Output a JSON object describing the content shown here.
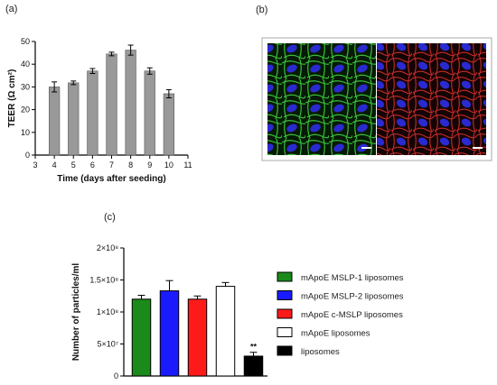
{
  "panels": {
    "a": "(a)",
    "b": "(b)",
    "c": "(c)"
  },
  "chart_data": [
    {
      "type": "bar",
      "panel": "(a)",
      "x": [
        4,
        5,
        6,
        7,
        8,
        9,
        10
      ],
      "values": [
        30,
        31.8,
        37,
        44.5,
        46.2,
        37,
        27
      ],
      "errors": [
        2.2,
        0.8,
        1.1,
        0.8,
        2.2,
        1.4,
        1.8
      ],
      "xlim": [
        3,
        11
      ],
      "xticks": [
        3,
        4,
        5,
        6,
        7,
        8,
        9,
        10,
        11
      ],
      "ylim": [
        0,
        50
      ],
      "yticks": [
        0,
        10,
        20,
        30,
        40,
        50
      ],
      "xlabel": "Time (days after seeding)",
      "ylabel": "TEER (Ω cm²)",
      "bar_color": "#999999"
    },
    {
      "type": "bar",
      "panel": "(c)",
      "categories": [
        "mApoE MSLP-1 liposomes",
        "mApoE MSLP-2 liposomes",
        "mApoE c-MSLP liposomes",
        "mApoE liposomes",
        "liposomes"
      ],
      "values": [
        120000000,
        133000000,
        120000000,
        140000000,
        31000000
      ],
      "errors": [
        6000000,
        16000000,
        5000000,
        6000000,
        6000000
      ],
      "colors": [
        "#1a8a1a",
        "#1a1aff",
        "#ff1a1a",
        "#ffffff",
        "#000000"
      ],
      "ylim": [
        0,
        200000000
      ],
      "yticks": [
        0,
        50000000,
        100000000,
        150000000,
        200000000
      ],
      "ytick_labels": [
        "0",
        "5×10⁷",
        "1×10⁸",
        "1.5×10⁸",
        "2×10⁸"
      ],
      "ylabel": "Number of particles/ml",
      "annotations": [
        {
          "category": "liposomes",
          "text": "**"
        }
      ],
      "legend": "right"
    }
  ],
  "image_panel": {
    "left_channel_color": "#2a9a2a",
    "right_channel_color": "#c42a2a",
    "nuclei_color": "#2a2ad0"
  }
}
